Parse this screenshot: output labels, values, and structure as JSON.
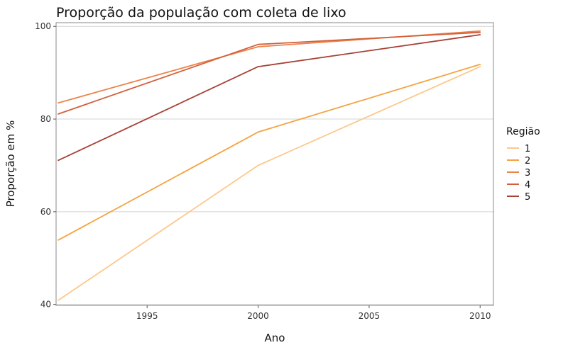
{
  "chart_data": {
    "type": "line",
    "title": "Proporção da população com coleta de lixo",
    "xlabel": "Ano",
    "ylabel": "Proporção em %",
    "x": [
      1991,
      2000,
      2010
    ],
    "xlim": [
      1990.9,
      2010.6
    ],
    "ylim": [
      39.8,
      100.8
    ],
    "xticks": [
      1995,
      2000,
      2005,
      2010
    ],
    "yticks": [
      40,
      60,
      80,
      100
    ],
    "grid": "horizontal",
    "legend": {
      "title": "Região",
      "position": "right"
    },
    "series": [
      {
        "name": "1",
        "color": "#fdc88c",
        "values": [
          40.9,
          70.0,
          91.3
        ]
      },
      {
        "name": "2",
        "color": "#f4a442",
        "values": [
          53.9,
          77.2,
          91.8
        ]
      },
      {
        "name": "3",
        "color": "#ec8348",
        "values": [
          83.5,
          95.6,
          99.0
        ]
      },
      {
        "name": "4",
        "color": "#d2603d",
        "values": [
          81.1,
          96.1,
          98.7
        ]
      },
      {
        "name": "5",
        "color": "#a84136",
        "values": [
          71.1,
          91.3,
          98.2
        ]
      }
    ]
  }
}
